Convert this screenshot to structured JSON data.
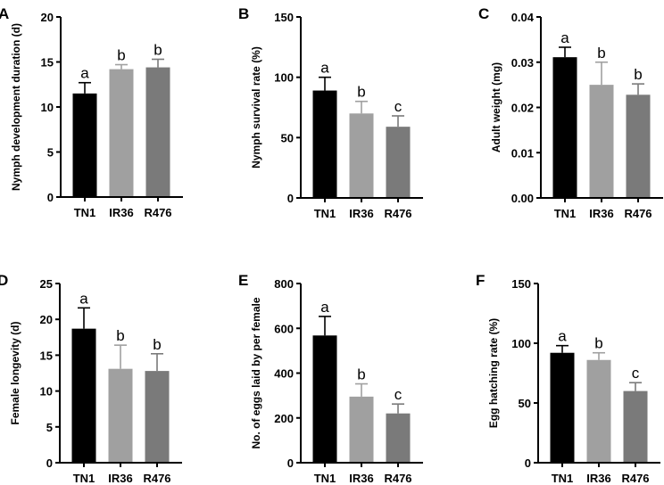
{
  "chart_data": [
    {
      "panel": "A",
      "type": "bar",
      "categories": [
        "TN1",
        "IR36",
        "R476"
      ],
      "values": [
        11.5,
        14.2,
        14.4
      ],
      "errors": [
        1.2,
        0.5,
        0.9
      ],
      "letters": [
        "a",
        "b",
        "b"
      ],
      "ylabel": "Nymph development duration (d)",
      "ylim": [
        0,
        20
      ],
      "yticks": [
        "0",
        "5",
        "10",
        "15",
        "20"
      ],
      "tickvals": [
        0,
        5,
        10,
        15,
        20
      ]
    },
    {
      "panel": "B",
      "type": "bar",
      "categories": [
        "TN1",
        "IR36",
        "R476"
      ],
      "values": [
        89,
        70,
        59
      ],
      "errors": [
        11,
        10,
        9
      ],
      "letters": [
        "a",
        "b",
        "c"
      ],
      "ylabel": "Nymph survival rate (%)",
      "ylim": [
        0,
        150
      ],
      "yticks": [
        "0",
        "50",
        "100",
        "150"
      ],
      "tickvals": [
        0,
        50,
        100,
        150
      ]
    },
    {
      "panel": "C",
      "type": "bar",
      "categories": [
        "TN1",
        "IR36",
        "R476"
      ],
      "values": [
        0.0311,
        0.025,
        0.0228
      ],
      "errors": [
        0.0022,
        0.005,
        0.0024
      ],
      "letters": [
        "a",
        "b",
        "b"
      ],
      "ylabel": "Adult weight (mg)",
      "ylim": [
        0,
        0.04
      ],
      "yticks": [
        "0.00",
        "0.01",
        "0.02",
        "0.03",
        "0.04"
      ],
      "tickvals": [
        0,
        0.01,
        0.02,
        0.03,
        0.04
      ]
    },
    {
      "panel": "D",
      "type": "bar",
      "categories": [
        "TN1",
        "IR36",
        "R476"
      ],
      "values": [
        18.7,
        13.1,
        12.8
      ],
      "errors": [
        2.9,
        3.3,
        2.4
      ],
      "letters": [
        "a",
        "b",
        "b"
      ],
      "ylabel": "Female longevity (d)",
      "ylim": [
        0,
        25
      ],
      "yticks": [
        "0",
        "5",
        "10",
        "15",
        "20",
        "25"
      ],
      "tickvals": [
        0,
        5,
        10,
        15,
        20,
        25
      ]
    },
    {
      "panel": "E",
      "type": "bar",
      "categories": [
        "TN1",
        "IR36",
        "R476"
      ],
      "values": [
        568,
        295,
        220
      ],
      "errors": [
        85,
        57,
        42
      ],
      "letters": [
        "a",
        "b",
        "c"
      ],
      "ylabel": "No. of eggs laid by per female",
      "ylim": [
        0,
        800
      ],
      "yticks": [
        "0",
        "200",
        "400",
        "600",
        "800"
      ],
      "tickvals": [
        0,
        200,
        400,
        600,
        800
      ]
    },
    {
      "panel": "F",
      "type": "bar",
      "categories": [
        "TN1",
        "IR36",
        "R476"
      ],
      "values": [
        92,
        86,
        60
      ],
      "errors": [
        6,
        6,
        7
      ],
      "letters": [
        "a",
        "b",
        "c"
      ],
      "ylabel": "Egg hatching rate (%)",
      "ylim": [
        0,
        150
      ],
      "yticks": [
        "0",
        "50",
        "100",
        "150"
      ],
      "tickvals": [
        0,
        50,
        100,
        150
      ]
    }
  ],
  "colors": {
    "TN1": "#000000",
    "IR36": "#a0a0a0",
    "R476": "#7a7a7a",
    "axis": "#000000"
  }
}
